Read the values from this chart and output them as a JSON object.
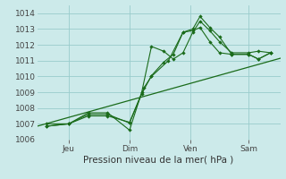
{
  "bg_color": "#cceaea",
  "grid_color": "#99cccc",
  "line_color": "#1a6b1a",
  "xlabel": "Pression niveau de la mer( hPa )",
  "ylim": [
    1006,
    1014.5
  ],
  "xlim": [
    0.0,
    1.0
  ],
  "yticks": [
    1006,
    1007,
    1008,
    1009,
    1010,
    1011,
    1012,
    1013,
    1014
  ],
  "xtick_positions": [
    0.13,
    0.38,
    0.63,
    0.87
  ],
  "xtick_labels": [
    "Jeu",
    "Dim",
    "Ven",
    "Sam"
  ],
  "trend_line": {
    "x": [
      0.0,
      1.0
    ],
    "y": [
      1006.85,
      1011.15
    ]
  },
  "line1": {
    "x": [
      0.04,
      0.13,
      0.21,
      0.29,
      0.38,
      0.43,
      0.47,
      0.52,
      0.56,
      0.6,
      0.64,
      0.67,
      0.71,
      0.75,
      0.8,
      0.87,
      0.91,
      0.96
    ],
    "y": [
      1007.0,
      1007.0,
      1007.7,
      1007.7,
      1006.6,
      1009.0,
      1011.9,
      1011.6,
      1011.1,
      1011.5,
      1012.8,
      1013.5,
      1012.9,
      1012.2,
      1011.5,
      1011.5,
      1011.6,
      1011.5
    ]
  },
  "line2": {
    "x": [
      0.04,
      0.13,
      0.21,
      0.29,
      0.38,
      0.43,
      0.47,
      0.52,
      0.56,
      0.6,
      0.64,
      0.67,
      0.71,
      0.75,
      0.8,
      0.87,
      0.91,
      0.96
    ],
    "y": [
      1006.85,
      1007.0,
      1007.6,
      1007.6,
      1007.05,
      1008.9,
      1010.05,
      1010.9,
      1011.4,
      1012.8,
      1013.0,
      1013.8,
      1013.1,
      1012.5,
      1011.4,
      1011.4,
      1011.1,
      1011.5
    ]
  },
  "line3": {
    "x": [
      0.04,
      0.13,
      0.21,
      0.29,
      0.38,
      0.44,
      0.47,
      0.54,
      0.6,
      0.64,
      0.67,
      0.71,
      0.75,
      0.8,
      0.87,
      0.91,
      0.96
    ],
    "y": [
      1006.85,
      1007.0,
      1007.5,
      1007.5,
      1007.1,
      1009.3,
      1010.0,
      1011.0,
      1012.8,
      1012.9,
      1013.1,
      1012.2,
      1011.5,
      1011.4,
      1011.4,
      1011.1,
      1011.5
    ]
  }
}
